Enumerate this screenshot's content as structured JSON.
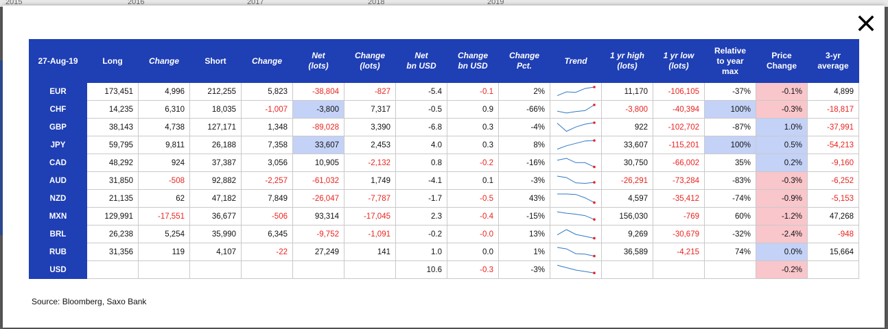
{
  "background": {
    "axis_ticks": [
      "2015",
      "2016",
      "2017",
      "2018",
      "2019"
    ]
  },
  "dialog": {
    "close_icon": "close-icon"
  },
  "table": {
    "columns": [
      {
        "label": "27-Aug-19",
        "italic": false
      },
      {
        "label": "Long",
        "italic": false
      },
      {
        "label": "Change",
        "italic": true
      },
      {
        "label": "Short",
        "italic": false
      },
      {
        "label": "Change",
        "italic": true
      },
      {
        "label": "Net\n(lots)",
        "italic": true
      },
      {
        "label": "Change\n(lots)",
        "italic": true
      },
      {
        "label": "Net\nbn USD",
        "italic": true
      },
      {
        "label": "Change\nbn USD",
        "italic": true
      },
      {
        "label": "Change\nPct.",
        "italic": true
      },
      {
        "label": "Trend",
        "italic": true
      },
      {
        "label": "1 yr high\n(lots)",
        "italic": true
      },
      {
        "label": "1 yr low\n(lots)",
        "italic": true
      },
      {
        "label": "Relative\nto year\nmax",
        "italic": false
      },
      {
        "label": "Price\nChange",
        "italic": false
      },
      {
        "label": "3-yr\naverage",
        "italic": false
      }
    ],
    "rows": [
      {
        "currency": "EUR",
        "long": "173,451",
        "long_change": "4,996",
        "short": "212,255",
        "short_change": "5,823",
        "net_lots": "-38,804",
        "change_lots": "-827",
        "net_bn_usd": "-5.4",
        "change_bn_usd": "-0.1",
        "change_pct": "2%",
        "trend": [
          0.1,
          0.5,
          0.45,
          0.85,
          1.0
        ],
        "high_1yr": "11,170",
        "low_1yr": "-106,105",
        "relative_max": "-37%",
        "price_change": "-0.1%",
        "avg_3yr": "4,899"
      },
      {
        "currency": "CHF",
        "long": "14,235",
        "long_change": "6,310",
        "short": "18,035",
        "short_change": "-1,007",
        "net_lots": "-3,800",
        "change_lots": "7,317",
        "net_bn_usd": "-0.5",
        "change_bn_usd": "0.9",
        "change_pct": "-66%",
        "trend": [
          0.35,
          0.15,
          0.3,
          0.4,
          1.0
        ],
        "high_1yr": "-3,800",
        "low_1yr": "-40,394",
        "relative_max": "100%",
        "price_change": "-0.3%",
        "avg_3yr": "-18,817"
      },
      {
        "currency": "GBP",
        "long": "38,143",
        "long_change": "4,738",
        "short": "127,171",
        "short_change": "1,348",
        "net_lots": "-89,028",
        "change_lots": "3,390",
        "net_bn_usd": "-6.8",
        "change_bn_usd": "0.3",
        "change_pct": "-4%",
        "trend": [
          0.95,
          0.1,
          0.55,
          0.85,
          1.0
        ],
        "high_1yr": "922",
        "low_1yr": "-102,702",
        "relative_max": "-87%",
        "price_change": "1.0%",
        "avg_3yr": "-37,991"
      },
      {
        "currency": "JPY",
        "long": "59,795",
        "long_change": "9,811",
        "short": "26,188",
        "short_change": "7,358",
        "net_lots": "33,607",
        "change_lots": "2,453",
        "net_bn_usd": "4.0",
        "change_bn_usd": "0.3",
        "change_pct": "8%",
        "trend": [
          0.1,
          0.45,
          0.7,
          0.95,
          1.0
        ],
        "high_1yr": "33,607",
        "low_1yr": "-115,201",
        "relative_max": "100%",
        "price_change": "0.5%",
        "avg_3yr": "-54,213"
      },
      {
        "currency": "CAD",
        "long": "48,292",
        "long_change": "924",
        "short": "37,387",
        "short_change": "3,056",
        "net_lots": "10,905",
        "change_lots": "-2,132",
        "net_bn_usd": "0.8",
        "change_bn_usd": "-0.2",
        "change_pct": "-16%",
        "trend": [
          0.8,
          1.0,
          0.55,
          0.55,
          0.1
        ],
        "high_1yr": "30,750",
        "low_1yr": "-66,002",
        "relative_max": "35%",
        "price_change": "0.2%",
        "avg_3yr": "-9,160"
      },
      {
        "currency": "AUD",
        "long": "31,850",
        "long_change": "-508",
        "short": "92,882",
        "short_change": "-2,257",
        "net_lots": "-61,032",
        "change_lots": "1,749",
        "net_bn_usd": "-4.1",
        "change_bn_usd": "0.1",
        "change_pct": "-3%",
        "trend": [
          1.0,
          0.85,
          0.3,
          0.25,
          0.35
        ],
        "high_1yr": "-26,291",
        "low_1yr": "-73,284",
        "relative_max": "-83%",
        "price_change": "-0.3%",
        "avg_3yr": "-6,252"
      },
      {
        "currency": "NZD",
        "long": "21,135",
        "long_change": "62",
        "short": "47,182",
        "short_change": "7,849",
        "net_lots": "-26,047",
        "change_lots": "-7,787",
        "net_bn_usd": "-1.7",
        "change_bn_usd": "-0.5",
        "change_pct": "43%",
        "trend": [
          1.0,
          1.0,
          0.95,
          0.6,
          0.1
        ],
        "high_1yr": "4,597",
        "low_1yr": "-35,412",
        "relative_max": "-74%",
        "price_change": "-0.9%",
        "avg_3yr": "-5,153"
      },
      {
        "currency": "MXN",
        "long": "129,991",
        "long_change": "-17,551",
        "short": "36,677",
        "short_change": "-506",
        "net_lots": "93,314",
        "change_lots": "-17,045",
        "net_bn_usd": "2.3",
        "change_bn_usd": "-0.4",
        "change_pct": "-15%",
        "trend": [
          1.0,
          0.85,
          0.75,
          0.6,
          0.2
        ],
        "high_1yr": "156,030",
        "low_1yr": "-769",
        "relative_max": "60%",
        "price_change": "-1.2%",
        "avg_3yr": "47,268"
      },
      {
        "currency": "BRL",
        "long": "26,238",
        "long_change": "5,254",
        "short": "35,990",
        "short_change": "6,345",
        "net_lots": "-9,752",
        "change_lots": "-1,091",
        "net_bn_usd": "-0.2",
        "change_bn_usd": "-0.0",
        "change_pct": "13%",
        "trend": [
          0.45,
          1.0,
          0.5,
          0.3,
          0.1
        ],
        "high_1yr": "9,269",
        "low_1yr": "-30,679",
        "relative_max": "-32%",
        "price_change": "-2.4%",
        "avg_3yr": "-948"
      },
      {
        "currency": "RUB",
        "long": "31,356",
        "long_change": "119",
        "short": "4,107",
        "short_change": "-22",
        "net_lots": "27,249",
        "change_lots": "141",
        "net_bn_usd": "1.0",
        "change_bn_usd": "0.0",
        "change_pct": "1%",
        "trend": [
          1.0,
          0.85,
          0.35,
          0.3,
          0.1
        ],
        "high_1yr": "36,589",
        "low_1yr": "-4,215",
        "relative_max": "74%",
        "price_change": "0.0%",
        "avg_3yr": "15,664"
      },
      {
        "currency": "USD",
        "long": "",
        "long_change": "",
        "short": "",
        "short_change": "",
        "net_lots": "",
        "change_lots": "",
        "net_bn_usd": "10.6",
        "change_bn_usd": "-0.3",
        "change_pct": "-3%",
        "trend": [
          1.0,
          0.75,
          0.5,
          0.35,
          0.2
        ],
        "high_1yr": "",
        "low_1yr": "",
        "relative_max": "",
        "price_change": "-0.2%",
        "avg_3yr": ""
      }
    ],
    "highlight_cells": [
      "CHF.net_lots",
      "JPY.net_lots",
      "CHF.relative_max",
      "JPY.relative_max"
    ],
    "colors": {
      "header_bg": "#1f3fb4",
      "negative_text": "#e8231e",
      "highlight_blue": "#c4d2f7",
      "negative_price_bg": "#f8c6cb",
      "trend_line": "#2e78c8",
      "trend_marker": "#e8231e"
    }
  },
  "source": "Source: Bloomberg, Saxo Bank"
}
